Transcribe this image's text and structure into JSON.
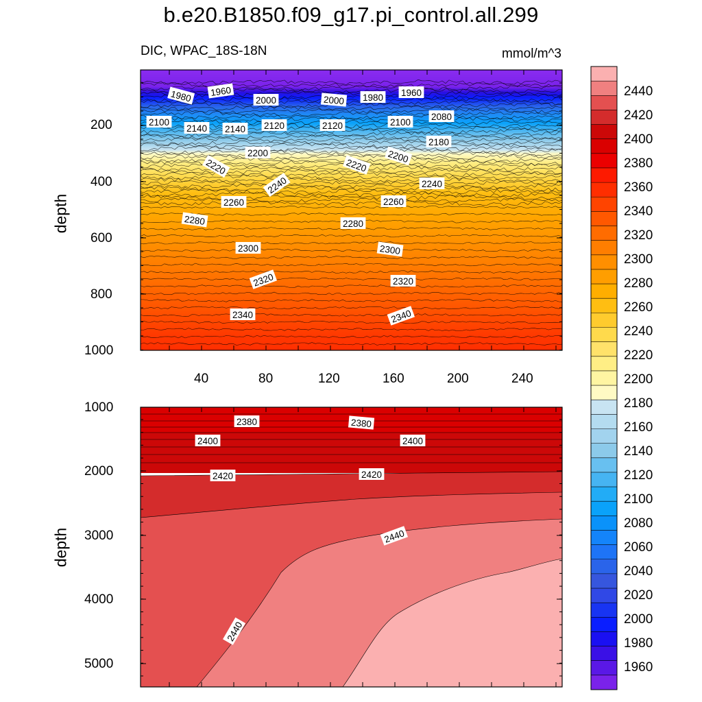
{
  "chart_data": [
    {
      "type": "heatmap",
      "panel": "upper",
      "title": "b.e20.B1850.f09_g17.pi_control.all.299",
      "subtitle_left": "DIC, WPAC_18S-18N",
      "subtitle_right": "mmol/m^3",
      "xlabel": "",
      "ylabel": "depth",
      "xlim": [
        0,
        262
      ],
      "ylim": [
        1000,
        0
      ],
      "xticks": [
        "40",
        "80",
        "120",
        "160",
        "200",
        "240"
      ],
      "yticks": [
        "200",
        "400",
        "600",
        "800",
        "1000"
      ],
      "contour_labels": [
        "1980",
        "1960",
        "2000",
        "2000",
        "1980",
        "1960",
        "2100",
        "2140",
        "2140",
        "2120",
        "2120",
        "2100",
        "2080",
        "2200",
        "2180",
        "2200",
        "2220",
        "2220",
        "2240",
        "2240",
        "2260",
        "2260",
        "2280",
        "2280",
        "2300",
        "2300",
        "2320",
        "2320",
        "2340",
        "2340"
      ]
    },
    {
      "type": "heatmap",
      "panel": "lower",
      "xlabel": "",
      "ylabel": "depth",
      "xlim": [
        0,
        262
      ],
      "ylim": [
        5350,
        1000
      ],
      "yticks": [
        "1000",
        "2000",
        "3000",
        "4000",
        "5000"
      ],
      "contour_labels": [
        "2380",
        "2380",
        "2400",
        "2400",
        "2420",
        "2420",
        "2440",
        "2440"
      ]
    }
  ],
  "colorbar": {
    "labels": [
      "2440",
      "2420",
      "2400",
      "2380",
      "2360",
      "2340",
      "2320",
      "2300",
      "2280",
      "2260",
      "2240",
      "2220",
      "2200",
      "2180",
      "2160",
      "2140",
      "2120",
      "2100",
      "2080",
      "2060",
      "2040",
      "2020",
      "2000",
      "1980",
      "1960"
    ],
    "colors": [
      "#FBB0B0",
      "#F08080",
      "#E45050",
      "#D42C2C",
      "#CC0808",
      "#DA0000",
      "#EB0000",
      "#FD1A00",
      "#FF2E00",
      "#FF4400",
      "#FF5800",
      "#FF6C00",
      "#FF7E00",
      "#FF8F00",
      "#FF9E00",
      "#FFAE00",
      "#FFBE12",
      "#FFCB2E",
      "#FFDA4C",
      "#FFE26A",
      "#FFEE85",
      "#FFF5A2",
      "#FFFAC4",
      "#C8E4F2",
      "#B4DCF0",
      "#A2D3EE",
      "#8CCAEA",
      "#68C0F0",
      "#46B4F2",
      "#22ACF6",
      "#0AA2FA",
      "#0A92FA",
      "#1484FA",
      "#1E74F6",
      "#2A64EA",
      "#3656DE",
      "#3048E6",
      "#1834F2",
      "#0A1EFF",
      "#1A10F2",
      "#3A10E6",
      "#5A18E6",
      "#7A22EA"
    ]
  },
  "upper_fill_stops": [
    {
      "offset": 0.0,
      "color": "#8A2CF0"
    },
    {
      "offset": 0.06,
      "color": "#7A22EA"
    },
    {
      "offset": 0.08,
      "color": "#2A10E0"
    },
    {
      "offset": 0.1,
      "color": "#0A1EFF"
    },
    {
      "offset": 0.13,
      "color": "#2A64EA"
    },
    {
      "offset": 0.16,
      "color": "#1E8CF6"
    },
    {
      "offset": 0.19,
      "color": "#0AA2FA"
    },
    {
      "offset": 0.215,
      "color": "#46B4F2"
    },
    {
      "offset": 0.25,
      "color": "#8CCAEA"
    },
    {
      "offset": 0.285,
      "color": "#C8E4F2"
    },
    {
      "offset": 0.3,
      "color": "#FFFAC4"
    },
    {
      "offset": 0.33,
      "color": "#FFEE85"
    },
    {
      "offset": 0.38,
      "color": "#FFDA4C"
    },
    {
      "offset": 0.44,
      "color": "#FFBE12"
    },
    {
      "offset": 0.52,
      "color": "#FFA600"
    },
    {
      "offset": 0.62,
      "color": "#FF8F00"
    },
    {
      "offset": 0.74,
      "color": "#FF7200"
    },
    {
      "offset": 0.86,
      "color": "#FF5200"
    },
    {
      "offset": 0.95,
      "color": "#FF3800"
    },
    {
      "offset": 1.0,
      "color": "#FF2E00"
    }
  ]
}
